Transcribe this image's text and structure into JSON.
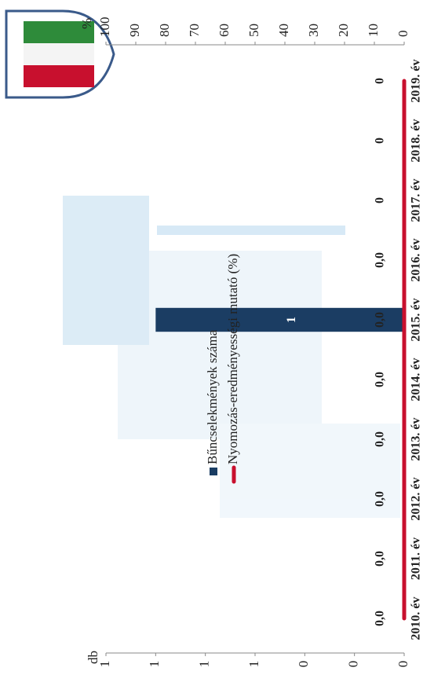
{
  "chart_data": {
    "type": "bar",
    "categories": [
      "2010. év",
      "2011. év",
      "2012. év",
      "2013. év",
      "2014. év",
      "2015. év",
      "2016. év",
      "2017. év",
      "2018. év",
      "2019. év"
    ],
    "series": [
      {
        "name": "Bűncselekmények száma",
        "type": "bar",
        "color": "#1b3d63",
        "values": [
          0,
          0,
          0,
          0,
          0,
          1,
          0,
          0,
          0,
          0
        ],
        "value_labels": [
          null,
          null,
          null,
          null,
          null,
          "1",
          null,
          null,
          null,
          null
        ]
      },
      {
        "name": "Nyomozás-eredményességi mutató (%)",
        "type": "line",
        "axis": "y2",
        "color": "#c8102e",
        "values": [
          0,
          0,
          0,
          0,
          0,
          0,
          0,
          0,
          0,
          0
        ],
        "value_labels": [
          "0,0",
          "0,0",
          "0,0",
          "0,0",
          "0,0",
          "0,0",
          "0,0",
          "0",
          "0",
          "0"
        ]
      }
    ],
    "ylabel": "db",
    "y2label": "%",
    "ylim": [
      0,
      1.2
    ],
    "yticks": [
      0,
      {
        "value": 0.2,
        "label": "0"
      },
      {
        "value": 0.4,
        "label": "0"
      },
      {
        "value": 0.6,
        "label": "1"
      },
      {
        "value": 0.8,
        "label": "1"
      },
      1,
      {
        "value": 1.2,
        "label": "1"
      }
    ],
    "y2lim": [
      0,
      100
    ],
    "y2ticks": [
      0,
      10,
      20,
      30,
      40,
      50,
      60,
      70,
      80,
      90,
      100
    ]
  }
}
